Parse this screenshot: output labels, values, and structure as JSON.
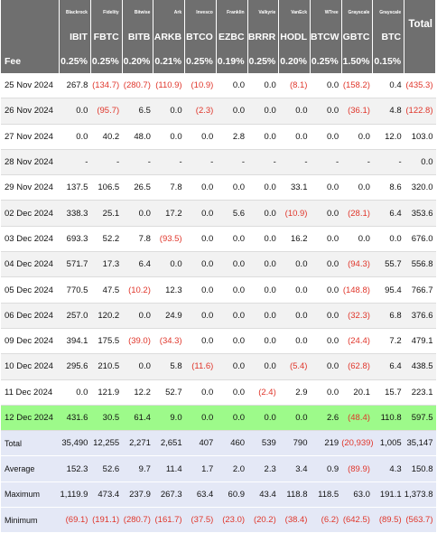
{
  "issuers": [
    "Blackrock",
    "Fidelity",
    "Bitwise",
    "Ark",
    "Invesco",
    "Franklin",
    "Valkyrie",
    "VanEck",
    "WTree",
    "Grayscale",
    "Grayscale"
  ],
  "tickers": [
    "IBIT",
    "FBTC",
    "BITB",
    "ARKB",
    "BTCO",
    "EZBC",
    "BRRR",
    "HODL",
    "BTCW",
    "GBTC",
    "BTC"
  ],
  "total_header": "Total",
  "fee_label": "Fee",
  "fees": [
    "0.25%",
    "0.25%",
    "0.20%",
    "0.21%",
    "0.25%",
    "0.19%",
    "0.25%",
    "0.20%",
    "0.25%",
    "1.50%",
    "0.15%"
  ],
  "rows": [
    {
      "date": "25 Nov 2024",
      "vals": [
        "267.8",
        "(134.7)",
        "(280.7)",
        "(110.9)",
        "(10.9)",
        "0.0",
        "0.0",
        "(8.1)",
        "0.0",
        "(158.2)",
        "0.4"
      ],
      "total": "(435.3)"
    },
    {
      "date": "26 Nov 2024",
      "vals": [
        "0.0",
        "(95.7)",
        "6.5",
        "0.0",
        "(2.3)",
        "0.0",
        "0.0",
        "0.0",
        "0.0",
        "(36.1)",
        "4.8"
      ],
      "total": "(122.8)"
    },
    {
      "date": "27 Nov 2024",
      "vals": [
        "0.0",
        "40.2",
        "48.0",
        "0.0",
        "0.0",
        "2.8",
        "0.0",
        "0.0",
        "0.0",
        "0.0",
        "12.0"
      ],
      "total": "103.0"
    },
    {
      "date": "28 Nov 2024",
      "vals": [
        "-",
        "-",
        "-",
        "-",
        "-",
        "-",
        "-",
        "-",
        "-",
        "-",
        "-"
      ],
      "total": "0.0"
    },
    {
      "date": "29 Nov 2024",
      "vals": [
        "137.5",
        "106.5",
        "26.5",
        "7.8",
        "0.0",
        "0.0",
        "0.0",
        "33.1",
        "0.0",
        "0.0",
        "8.6"
      ],
      "total": "320.0"
    },
    {
      "date": "02 Dec 2024",
      "vals": [
        "338.3",
        "25.1",
        "0.0",
        "17.2",
        "0.0",
        "5.6",
        "0.0",
        "(10.9)",
        "0.0",
        "(28.1)",
        "6.4"
      ],
      "total": "353.6"
    },
    {
      "date": "03 Dec 2024",
      "vals": [
        "693.3",
        "52.2",
        "7.8",
        "(93.5)",
        "0.0",
        "0.0",
        "0.0",
        "16.2",
        "0.0",
        "0.0",
        "0.0"
      ],
      "total": "676.0"
    },
    {
      "date": "04 Dec 2024",
      "vals": [
        "571.7",
        "17.3",
        "6.4",
        "0.0",
        "0.0",
        "0.0",
        "0.0",
        "0.0",
        "0.0",
        "(94.3)",
        "55.7"
      ],
      "total": "556.8"
    },
    {
      "date": "05 Dec 2024",
      "vals": [
        "770.5",
        "47.5",
        "(10.2)",
        "12.3",
        "0.0",
        "0.0",
        "0.0",
        "0.0",
        "0.0",
        "(148.8)",
        "95.4"
      ],
      "total": "766.7"
    },
    {
      "date": "06 Dec 2024",
      "vals": [
        "257.0",
        "120.2",
        "0.0",
        "24.9",
        "0.0",
        "0.0",
        "0.0",
        "0.0",
        "0.0",
        "(32.3)",
        "6.8"
      ],
      "total": "376.6"
    },
    {
      "date": "09 Dec 2024",
      "vals": [
        "394.1",
        "175.5",
        "(39.0)",
        "(34.3)",
        "0.0",
        "0.0",
        "0.0",
        "0.0",
        "0.0",
        "(24.4)",
        "7.2"
      ],
      "total": "479.1"
    },
    {
      "date": "10 Dec 2024",
      "vals": [
        "295.6",
        "210.5",
        "0.0",
        "5.8",
        "(11.6)",
        "0.0",
        "0.0",
        "(5.4)",
        "0.0",
        "(62.8)",
        "6.4"
      ],
      "total": "438.5"
    },
    {
      "date": "11 Dec 2024",
      "vals": [
        "0.0",
        "121.9",
        "12.2",
        "52.7",
        "0.0",
        "0.0",
        "(2.4)",
        "2.9",
        "0.0",
        "20.1",
        "15.7"
      ],
      "total": "223.1"
    },
    {
      "date": "12 Dec 2024",
      "vals": [
        "431.6",
        "30.5",
        "61.4",
        "9.0",
        "0.0",
        "0.0",
        "0.0",
        "0.0",
        "2.6",
        "(48.4)",
        "110.8"
      ],
      "total": "597.5"
    }
  ],
  "highlight_row_index": 13,
  "summary": [
    {
      "label": "Total",
      "vals": [
        "35,490",
        "12,255",
        "2,271",
        "2,651",
        "407",
        "460",
        "539",
        "790",
        "219",
        "(20,939)",
        "1,005"
      ],
      "total": "35,147"
    },
    {
      "label": "Average",
      "vals": [
        "152.3",
        "52.6",
        "9.7",
        "11.4",
        "1.7",
        "2.0",
        "2.3",
        "3.4",
        "0.9",
        "(89.9)",
        "4.3"
      ],
      "total": "150.8"
    },
    {
      "label": "Maximum",
      "vals": [
        "1,119.9",
        "473.4",
        "237.9",
        "267.3",
        "63.4",
        "60.9",
        "43.4",
        "118.8",
        "118.5",
        "63.0",
        "191.1"
      ],
      "total": "1,373.8"
    },
    {
      "label": "Minimum",
      "vals": [
        "(69.1)",
        "(191.1)",
        "(280.7)",
        "(161.7)",
        "(37.5)",
        "(23.0)",
        "(20.2)",
        "(38.4)",
        "(6.2)",
        "(642.5)",
        "(89.5)"
      ],
      "total": "(563.7)"
    }
  ],
  "colors": {
    "header_bg": "#6f6f6f",
    "highlight": "#9dfa8a",
    "summary_bg": "#e4e8f6",
    "negative": "#e0362b"
  }
}
